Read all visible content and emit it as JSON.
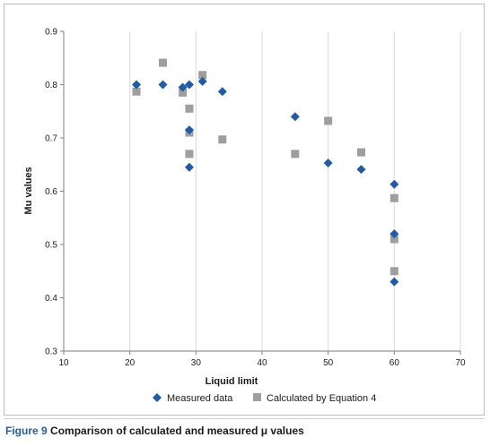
{
  "caption": {
    "figure_label": "Figure 9",
    "text": "Comparison of calculated and measured μ values"
  },
  "colors": {
    "measured": "#1f5ba8",
    "calculated": "#9e9e9e",
    "gridline": "#d9d9d9",
    "caption_label": "#1f5ba8"
  },
  "chart_data": {
    "type": "scatter",
    "title": "",
    "xlabel": "Liquid limit",
    "ylabel": "Mu values",
    "xlim": [
      10,
      70
    ],
    "ylim": [
      0.3,
      0.9
    ],
    "x_ticks": [
      10,
      20,
      30,
      40,
      50,
      60,
      70
    ],
    "y_ticks": [
      0.3,
      0.4,
      0.5,
      0.6,
      0.7,
      0.8,
      0.9
    ],
    "x_tick_labels": [
      "10",
      "20",
      "30",
      "40",
      "50",
      "60",
      "70"
    ],
    "y_tick_labels": [
      "0.3",
      "0.4",
      "0.5",
      "0.6",
      "0.7",
      "0.8",
      "0.9"
    ],
    "grid": "vertical",
    "legend_position": "bottom",
    "series": [
      {
        "name": "Measured data",
        "marker": "diamond",
        "points": [
          [
            21,
            0.8
          ],
          [
            25,
            0.8
          ],
          [
            28,
            0.795
          ],
          [
            29,
            0.8
          ],
          [
            29,
            0.715
          ],
          [
            29,
            0.645
          ],
          [
            31,
            0.806
          ],
          [
            34,
            0.787
          ],
          [
            45,
            0.74
          ],
          [
            50,
            0.653
          ],
          [
            55,
            0.641
          ],
          [
            60,
            0.613
          ],
          [
            60,
            0.52
          ],
          [
            60,
            0.43
          ]
        ]
      },
      {
        "name": "Calculated by Equation 4",
        "marker": "square",
        "points": [
          [
            21,
            0.787
          ],
          [
            25,
            0.841
          ],
          [
            28,
            0.785
          ],
          [
            29,
            0.755
          ],
          [
            29,
            0.71
          ],
          [
            29,
            0.67
          ],
          [
            31,
            0.818
          ],
          [
            34,
            0.697
          ],
          [
            45,
            0.67
          ],
          [
            50,
            0.732
          ],
          [
            55,
            0.673
          ],
          [
            60,
            0.587
          ],
          [
            60,
            0.51
          ],
          [
            60,
            0.45
          ]
        ]
      }
    ]
  }
}
